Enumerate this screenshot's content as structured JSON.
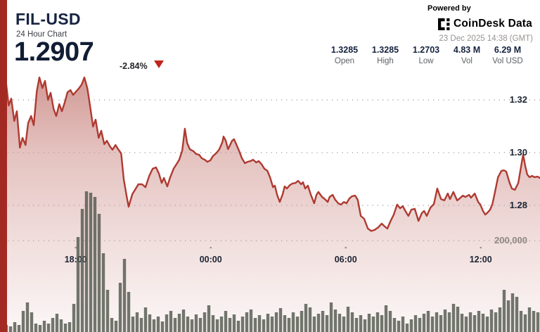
{
  "header": {
    "symbol": "FIL-USD",
    "subtitle": "24 Hour Chart",
    "price": "1.2907",
    "change_pct": "-2.84%",
    "powered_by": "Powered by",
    "brand": "CoinDesk Data",
    "timestamp": "23 Dec 2025 14:38 (GMT)",
    "stats": [
      {
        "value": "1.3285",
        "label": "Open"
      },
      {
        "value": "1.3285",
        "label": "High"
      },
      {
        "value": "1.2703",
        "label": "Low"
      },
      {
        "value": "4.83 M",
        "label": "Vol"
      },
      {
        "value": "6.29 M",
        "label": "Vol USD"
      }
    ]
  },
  "colors": {
    "accent_stripe": "#a32a22",
    "line_red": "#ae3a31",
    "fill_red": "#a5342b",
    "volume_bar": "#50564b",
    "navy_text": "#15233f",
    "grid_dot": "#b6a7a2",
    "tick_dot": "#9b8f8b",
    "down_triangle": "#c0241c"
  },
  "chart_data": {
    "type": "line+bar",
    "title": "FIL-USD 24 Hour Chart",
    "x_axis": {
      "total_minutes": 1440,
      "grid": "dotted"
    },
    "x_ticks": [
      {
        "label": "18:00",
        "minutes": 202
      },
      {
        "label": "00:00",
        "minutes": 562
      },
      {
        "label": "06:00",
        "minutes": 922
      },
      {
        "label": "12:00",
        "minutes": 1282
      }
    ],
    "y_ticks_price": [
      {
        "label": "1.32",
        "value": 1.32
      },
      {
        "label": "1.30",
        "value": 1.3
      },
      {
        "label": "1.28",
        "value": 1.28
      }
    ],
    "y_tick_volume": {
      "label": "200,000",
      "value": 200000
    },
    "price_series": [
      [
        0,
        1.3285
      ],
      [
        15,
        1.328
      ],
      [
        23,
        1.3179
      ],
      [
        30,
        1.3205
      ],
      [
        38,
        1.312
      ],
      [
        45,
        1.3157
      ],
      [
        53,
        1.3019
      ],
      [
        60,
        1.3056
      ],
      [
        68,
        1.3029
      ],
      [
        75,
        1.3112
      ],
      [
        83,
        1.3139
      ],
      [
        90,
        1.3104
      ],
      [
        98,
        1.3232
      ],
      [
        105,
        1.3285
      ],
      [
        113,
        1.3245
      ],
      [
        120,
        1.3272
      ],
      [
        128,
        1.32
      ],
      [
        135,
        1.3227
      ],
      [
        143,
        1.3165
      ],
      [
        150,
        1.3139
      ],
      [
        158,
        1.3184
      ],
      [
        165,
        1.3157
      ],
      [
        173,
        1.3192
      ],
      [
        180,
        1.3229
      ],
      [
        188,
        1.3237
      ],
      [
        195,
        1.3219
      ],
      [
        203,
        1.3232
      ],
      [
        210,
        1.3243
      ],
      [
        218,
        1.3259
      ],
      [
        225,
        1.3285
      ],
      [
        233,
        1.3243
      ],
      [
        240,
        1.3179
      ],
      [
        248,
        1.3099
      ],
      [
        255,
        1.3125
      ],
      [
        263,
        1.3056
      ],
      [
        270,
        1.3083
      ],
      [
        278,
        1.3032
      ],
      [
        285,
        1.3045
      ],
      [
        293,
        1.3024
      ],
      [
        300,
        1.3011
      ],
      [
        308,
        1.3029
      ],
      [
        315,
        1.3013
      ],
      [
        323,
        1.2997
      ],
      [
        330,
        1.2899
      ],
      [
        338,
        1.2832
      ],
      [
        343,
        1.2795
      ],
      [
        353,
        1.2843
      ],
      [
        360,
        1.2859
      ],
      [
        369,
        1.288
      ],
      [
        379,
        1.288
      ],
      [
        388,
        1.2869
      ],
      [
        398,
        1.2912
      ],
      [
        407,
        1.2939
      ],
      [
        416,
        1.2944
      ],
      [
        424,
        1.292
      ],
      [
        431,
        1.2885
      ],
      [
        437,
        1.2904
      ],
      [
        446,
        1.2872
      ],
      [
        454,
        1.2907
      ],
      [
        463,
        1.2939
      ],
      [
        471,
        1.2957
      ],
      [
        478,
        1.2973
      ],
      [
        486,
        1.3008
      ],
      [
        493,
        1.3091
      ],
      [
        499,
        1.3037
      ],
      [
        506,
        1.3013
      ],
      [
        516,
        1.3005
      ],
      [
        523,
        1.2995
      ],
      [
        531,
        1.2992
      ],
      [
        538,
        1.2979
      ],
      [
        546,
        1.2973
      ],
      [
        553,
        1.2965
      ],
      [
        561,
        1.2971
      ],
      [
        568,
        1.2987
      ],
      [
        578,
        1.3
      ],
      [
        585,
        1.3013
      ],
      [
        593,
        1.304
      ],
      [
        596,
        1.3061
      ],
      [
        602,
        1.3045
      ],
      [
        608,
        1.3013
      ],
      [
        613,
        1.3027
      ],
      [
        619,
        1.3045
      ],
      [
        624,
        1.3051
      ],
      [
        630,
        1.3032
      ],
      [
        638,
        1.3005
      ],
      [
        645,
        1.2979
      ],
      [
        653,
        1.296
      ],
      [
        660,
        1.2965
      ],
      [
        668,
        1.2968
      ],
      [
        675,
        1.2973
      ],
      [
        683,
        1.2963
      ],
      [
        690,
        1.2968
      ],
      [
        698,
        1.2955
      ],
      [
        705,
        1.2939
      ],
      [
        713,
        1.2931
      ],
      [
        720,
        1.2907
      ],
      [
        728,
        1.2869
      ],
      [
        733,
        1.2875
      ],
      [
        739,
        1.284
      ],
      [
        746,
        1.2813
      ],
      [
        754,
        1.2843
      ],
      [
        759,
        1.2872
      ],
      [
        765,
        1.2864
      ],
      [
        773,
        1.2877
      ],
      [
        780,
        1.2883
      ],
      [
        788,
        1.2885
      ],
      [
        795,
        1.2893
      ],
      [
        803,
        1.288
      ],
      [
        808,
        1.2888
      ],
      [
        814,
        1.2864
      ],
      [
        821,
        1.2875
      ],
      [
        829,
        1.284
      ],
      [
        838,
        1.2808
      ],
      [
        844,
        1.284
      ],
      [
        849,
        1.2851
      ],
      [
        859,
        1.2832
      ],
      [
        866,
        1.2824
      ],
      [
        874,
        1.2813
      ],
      [
        879,
        1.2832
      ],
      [
        887,
        1.284
      ],
      [
        894,
        1.2821
      ],
      [
        902,
        1.2808
      ],
      [
        909,
        1.2803
      ],
      [
        917,
        1.2813
      ],
      [
        924,
        1.2808
      ],
      [
        932,
        1.2827
      ],
      [
        939,
        1.2835
      ],
      [
        947,
        1.2837
      ],
      [
        954,
        1.2821
      ],
      [
        962,
        1.276
      ],
      [
        971,
        1.2749
      ],
      [
        981,
        1.2712
      ],
      [
        990,
        1.2703
      ],
      [
        999,
        1.2707
      ],
      [
        1009,
        1.2717
      ],
      [
        1018,
        1.2731
      ],
      [
        1026,
        1.272
      ],
      [
        1033,
        1.2712
      ],
      [
        1041,
        1.2739
      ],
      [
        1050,
        1.2765
      ],
      [
        1059,
        1.2803
      ],
      [
        1067,
        1.2789
      ],
      [
        1074,
        1.2797
      ],
      [
        1082,
        1.2776
      ],
      [
        1089,
        1.276
      ],
      [
        1097,
        1.2784
      ],
      [
        1106,
        1.2787
      ],
      [
        1116,
        1.2741
      ],
      [
        1125,
        1.2771
      ],
      [
        1131,
        1.2779
      ],
      [
        1138,
        1.276
      ],
      [
        1148,
        1.2792
      ],
      [
        1157,
        1.2805
      ],
      [
        1166,
        1.2864
      ],
      [
        1176,
        1.2824
      ],
      [
        1185,
        1.2819
      ],
      [
        1194,
        1.2845
      ],
      [
        1200,
        1.2824
      ],
      [
        1209,
        1.2851
      ],
      [
        1219,
        1.2819
      ],
      [
        1224,
        1.2824
      ],
      [
        1234,
        1.2837
      ],
      [
        1241,
        1.2832
      ],
      [
        1251,
        1.284
      ],
      [
        1256,
        1.2829
      ],
      [
        1266,
        1.2845
      ],
      [
        1275,
        1.2813
      ],
      [
        1281,
        1.2803
      ],
      [
        1288,
        1.2779
      ],
      [
        1294,
        1.2765
      ],
      [
        1299,
        1.2771
      ],
      [
        1307,
        1.2784
      ],
      [
        1313,
        1.2805
      ],
      [
        1318,
        1.2837
      ],
      [
        1328,
        1.2907
      ],
      [
        1337,
        1.2931
      ],
      [
        1344,
        1.2933
      ],
      [
        1350,
        1.2928
      ],
      [
        1359,
        1.2885
      ],
      [
        1365,
        1.2864
      ],
      [
        1373,
        1.2859
      ],
      [
        1382,
        1.2885
      ],
      [
        1391,
        1.296
      ],
      [
        1395,
        1.2992
      ],
      [
        1401,
        1.2947
      ],
      [
        1406,
        1.2917
      ],
      [
        1412,
        1.2907
      ],
      [
        1419,
        1.2912
      ],
      [
        1425,
        1.2907
      ],
      [
        1433,
        1.2909
      ],
      [
        1440,
        1.2904
      ]
    ],
    "volume_interval_minutes": 11.25,
    "volumes": [
      9200,
      15400,
      12300,
      21500,
      15400,
      46200,
      64600,
      43100,
      18500,
      15400,
      24600,
      18500,
      30800,
      40000,
      27700,
      18500,
      21500,
      61500,
      207700,
      269200,
      307700,
      304600,
      295400,
      258500,
      172300,
      92300,
      30800,
      24600,
      107700,
      160000,
      87700,
      33800,
      43100,
      30800,
      53800,
      38500,
      27700,
      33800,
      23100,
      38500,
      46200,
      30800,
      40000,
      49200,
      33800,
      27700,
      38500,
      30800,
      43100,
      58500,
      36900,
      27700,
      33800,
      46200,
      30800,
      38500,
      24600,
      33800,
      43100,
      49200,
      30800,
      36900,
      27700,
      40000,
      33800,
      43100,
      52300,
      36900,
      30800,
      43100,
      33800,
      46200,
      61500,
      53800,
      33800,
      40000,
      46200,
      36900,
      64600,
      49200,
      40000,
      33800,
      55400,
      43100,
      30800,
      36900,
      27700,
      40000,
      33800,
      43100,
      36900,
      58500,
      46200,
      30800,
      24600,
      33800,
      18500,
      27700,
      36900,
      30800,
      40000,
      46200,
      33800,
      43100,
      36900,
      49200,
      43100,
      61500,
      55400,
      40000,
      33800,
      43100,
      36900,
      46200,
      40000,
      33800,
      49200,
      43100,
      53800,
      92300,
      69200,
      84600,
      76900,
      46200,
      38500,
      53800,
      46200,
      43100
    ]
  }
}
